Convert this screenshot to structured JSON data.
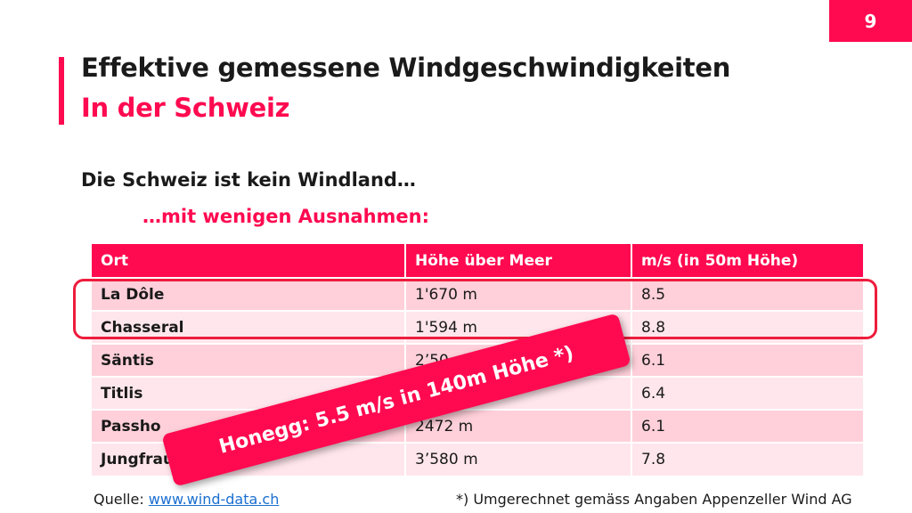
{
  "page_number": "9",
  "title": "Effektive gemessene Windgeschwindigkeiten",
  "subtitle": "In der Schweiz",
  "lead": "Die Schweiz ist kein Windland…",
  "lead2": "…mit wenigen Ausnahmen:",
  "table": {
    "headers": [
      "Ort",
      "Höhe über Meer",
      "m/s (in 50m Höhe)"
    ],
    "rows": [
      [
        "La Dôle",
        "1'670 m",
        "8.5"
      ],
      [
        "Chasseral",
        "1'594 m",
        "8.8"
      ],
      [
        "Säntis",
        "2’50",
        "6.1"
      ],
      [
        "Titlis",
        "",
        "6.4"
      ],
      [
        "Passho",
        "2472 m",
        "6.1"
      ],
      [
        "Jungfraujoch",
        "3’580 m",
        "7.8"
      ]
    ]
  },
  "callout": "Honegg: 5.5 m/s in 140m Höhe *)",
  "source": {
    "label": "Quelle:",
    "link": "www.wind-data.ch"
  },
  "footnote": "*) Umgerechnet gemäss Angaben Appenzeller Wind AG",
  "colors": {
    "accent": "#ff0a50",
    "row_odd": "#ffd0da",
    "row_even": "#ffe6ec",
    "highlight_border": "#ee1c3c",
    "link": "#1a6fd0"
  }
}
